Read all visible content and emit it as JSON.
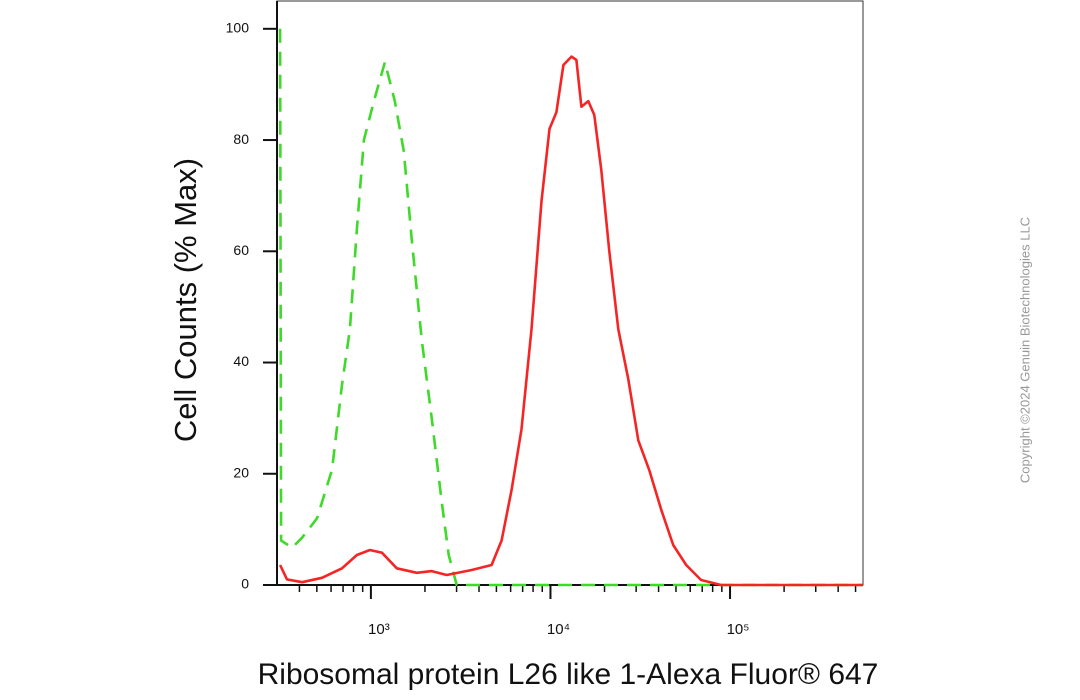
{
  "chart_data": {
    "type": "line",
    "y_label": "Cell Counts (% Max)",
    "x_label": "Ribosomal protein L26 like 1-Alexa Fluor® 647",
    "copyright": "Copyright ©2024 Genuin Biotechnologies LLC",
    "xscale": "log",
    "xlim": [
      300,
      550000
    ],
    "ylim": [
      0,
      105
    ],
    "xticks": [
      {
        "value": 1000,
        "label": "10³"
      },
      {
        "value": 10000,
        "label": "10⁴"
      },
      {
        "value": 100000,
        "label": "10⁵"
      }
    ],
    "xminorticks": [
      400,
      500,
      600,
      700,
      800,
      900,
      2000,
      3000,
      4000,
      5000,
      6000,
      7000,
      8000,
      9000,
      20000,
      30000,
      40000,
      50000,
      60000,
      70000,
      80000,
      90000,
      200000,
      300000,
      400000,
      500000
    ],
    "yticks": [
      0,
      20,
      40,
      60,
      80,
      100
    ],
    "series": [
      {
        "color": "#3fd92a",
        "dash": true,
        "x": [
          312,
          316,
          364,
          414,
          501,
          607,
          690,
          764,
          836,
          914,
          1039,
          1196,
          1359,
          1525,
          1690,
          1920,
          2182,
          2479,
          2712,
          3005,
          10130,
          550000
        ],
        "values": [
          100,
          8,
          6.7,
          8.5,
          12,
          20.7,
          36,
          46,
          64,
          80,
          87,
          94,
          87,
          78,
          62,
          44,
          30,
          15,
          5.4,
          0,
          0,
          0
        ]
      },
      {
        "color": "#f52525",
        "dash": false,
        "x": [
          312,
          341,
          414,
          534,
          690,
          836,
          987,
          1151,
          1394,
          1802,
          2182,
          2642,
          3640,
          4700,
          5342,
          6070,
          6900,
          7840,
          8910,
          9870,
          10790,
          11800,
          13090,
          13940,
          14860,
          16250,
          17540,
          19190,
          21270,
          23870,
          27120,
          30820,
          35480,
          41400,
          48230,
          56990,
          69000,
          89130,
          550000
        ],
        "values": [
          3.6,
          1,
          0.5,
          1.3,
          3,
          5.4,
          6.3,
          5.8,
          3,
          2.2,
          2.5,
          1.8,
          2.7,
          3.6,
          8,
          17,
          28,
          46,
          69,
          82,
          85,
          93.5,
          95,
          94.4,
          86,
          87,
          84.5,
          74.6,
          60,
          46,
          37,
          26,
          20.7,
          13.5,
          7.2,
          3.6,
          0.9,
          0,
          0
        ]
      }
    ]
  }
}
